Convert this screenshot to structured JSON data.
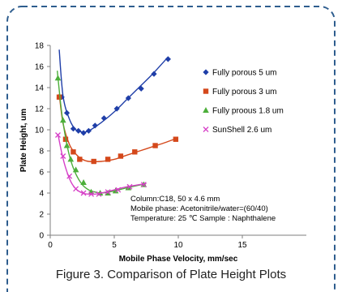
{
  "caption": "Figure 3. Comparison of Plate Height Plots",
  "colors": {
    "frame": "#2e5d8e",
    "axis": "#7f7f7f",
    "text": "#000000"
  },
  "chart_data": {
    "type": "scatter",
    "xlabel": "Mobile Phase Velocity, mm/sec",
    "ylabel": "Plate Height, um",
    "xlim": [
      0,
      20
    ],
    "ylim": [
      0,
      18
    ],
    "xticks": [
      0,
      5,
      10,
      15
    ],
    "yticks": [
      0,
      2,
      4,
      6,
      8,
      10,
      12,
      14,
      16,
      18
    ],
    "grid": false,
    "legend_position": "right",
    "annotation": [
      "Column:C18, 50 x 4.6 mm",
      "Mobile phase: Acetonitrile/water=(60/40)",
      "Temperature: 25 ℃   Sample : Naphthalene"
    ],
    "series": [
      {
        "name": "Fully porous 5 um",
        "color": "#1f3ea8",
        "marker": "diamond",
        "x": [
          0.9,
          1.3,
          1.8,
          2.2,
          2.6,
          3.0,
          3.5,
          4.2,
          5.2,
          6.1,
          7.1,
          8.1,
          9.2
        ],
        "y": [
          13.1,
          11.6,
          10.1,
          9.9,
          9.7,
          9.9,
          10.4,
          11.1,
          12.0,
          13.0,
          13.9,
          15.3,
          16.7
        ],
        "curve": {
          "x": [
            0.7,
            1.0,
            1.5,
            2.0,
            2.5,
            3.0,
            4.0,
            5.0,
            6.0,
            7.0,
            8.0,
            9.2
          ],
          "y": [
            17.6,
            13.2,
            11.0,
            10.0,
            9.8,
            9.9,
            10.7,
            11.7,
            12.9,
            14.1,
            15.3,
            16.9
          ]
        }
      },
      {
        "name": "Fully porous 3 um",
        "color": "#d4481b",
        "marker": "square",
        "x": [
          0.7,
          1.2,
          1.8,
          2.3,
          3.4,
          4.5,
          5.5,
          6.6,
          8.2,
          9.8
        ],
        "y": [
          13.1,
          9.1,
          7.9,
          7.2,
          7.0,
          7.2,
          7.5,
          7.9,
          8.5,
          9.1
        ],
        "curve": {
          "x": [
            0.7,
            1.0,
            1.5,
            2.0,
            2.5,
            3.0,
            4.0,
            5.0,
            6.0,
            7.0,
            8.0,
            9.0,
            9.9
          ],
          "y": [
            13.4,
            10.6,
            8.6,
            7.7,
            7.2,
            7.0,
            7.0,
            7.2,
            7.6,
            8.0,
            8.4,
            8.8,
            9.2
          ]
        }
      },
      {
        "name": "Fully proous 1.8 um",
        "color": "#4caf3a",
        "marker": "triangle",
        "x": [
          0.6,
          1.0,
          1.3,
          1.6,
          2.0,
          2.6,
          3.2,
          3.9,
          4.5,
          5.1,
          6.1,
          7.3
        ],
        "y": [
          14.9,
          10.9,
          8.5,
          7.2,
          6.2,
          5.0,
          4.1,
          4.0,
          4.0,
          4.2,
          4.5,
          4.8
        ],
        "curve": {
          "x": [
            0.55,
            0.8,
            1.0,
            1.3,
            1.6,
            2.0,
            2.5,
            3.0,
            3.5,
            4.0,
            5.0,
            6.0,
            7.5
          ],
          "y": [
            15.6,
            12.6,
            10.7,
            8.6,
            7.1,
            5.8,
            4.8,
            4.3,
            4.1,
            4.0,
            4.2,
            4.5,
            4.9
          ]
        }
      },
      {
        "name": "SunShell 2.6 um",
        "color": "#d63fc7",
        "marker": "x",
        "x": [
          0.6,
          1.0,
          1.5,
          2.0,
          2.6,
          3.2,
          3.8,
          4.5,
          5.3,
          6.2,
          7.3
        ],
        "y": [
          9.5,
          7.5,
          5.6,
          4.4,
          4.0,
          3.9,
          3.9,
          4.1,
          4.3,
          4.6,
          4.8
        ],
        "curve": {
          "x": [
            0.6,
            0.9,
            1.2,
            1.6,
            2.0,
            2.5,
            3.0,
            3.5,
            4.0,
            5.0,
            6.0,
            7.5
          ],
          "y": [
            9.6,
            7.8,
            6.4,
            5.1,
            4.4,
            4.0,
            3.9,
            3.9,
            4.0,
            4.3,
            4.6,
            4.9
          ]
        }
      }
    ]
  }
}
